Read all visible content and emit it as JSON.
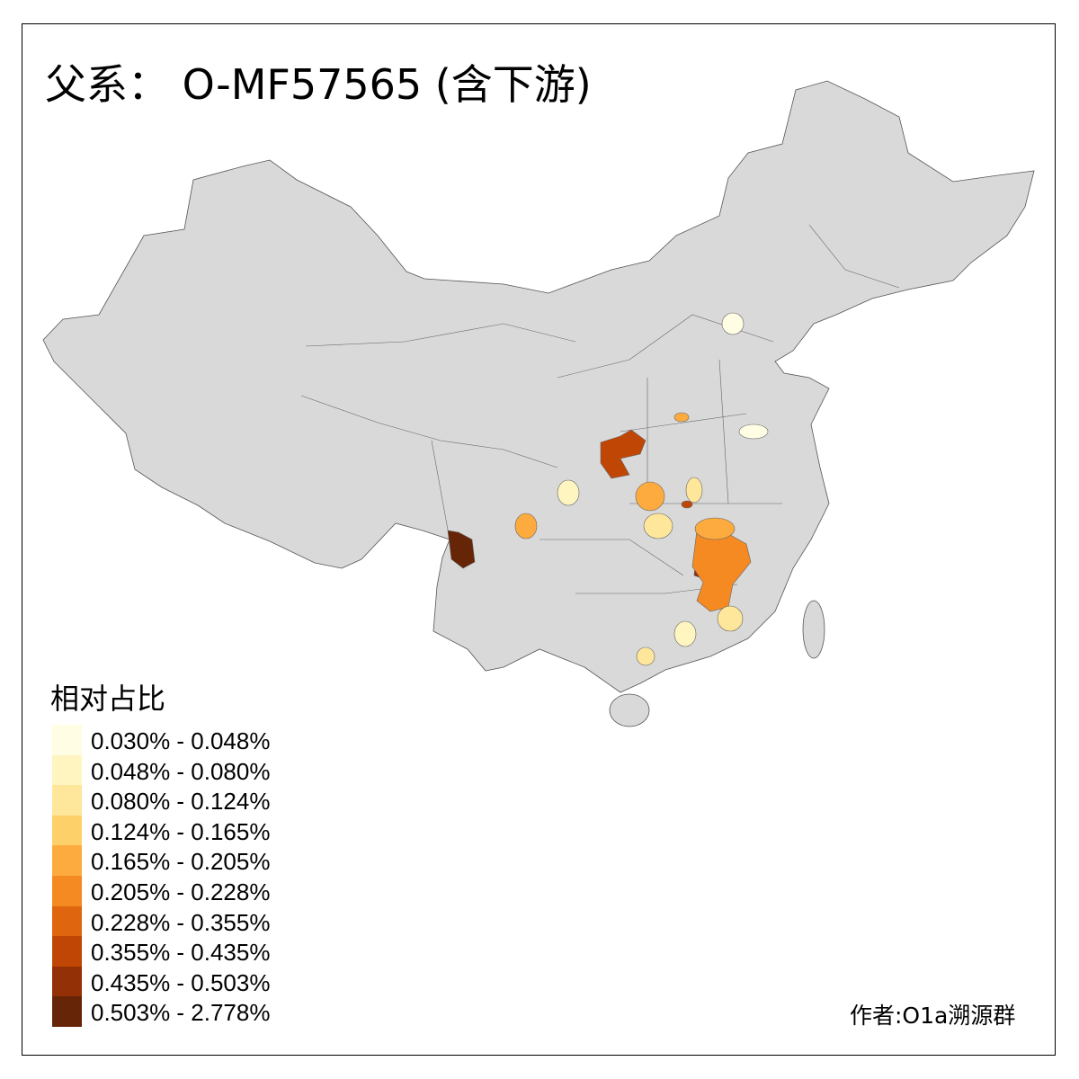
{
  "title": "父系： O-MF57565 (含下游)",
  "legend": {
    "title": "相对占比",
    "items": [
      {
        "label": "0.030% - 0.048%",
        "color": "#FFFDE3"
      },
      {
        "label": "0.048% - 0.080%",
        "color": "#FFF5C1"
      },
      {
        "label": "0.080% - 0.124%",
        "color": "#FEE69B"
      },
      {
        "label": "0.124% - 0.165%",
        "color": "#FED06A"
      },
      {
        "label": "0.165% - 0.205%",
        "color": "#FDAB3E"
      },
      {
        "label": "0.205% - 0.228%",
        "color": "#F58A22"
      },
      {
        "label": "0.228% - 0.355%",
        "color": "#E0650F"
      },
      {
        "label": "0.355% - 0.435%",
        "color": "#C04605"
      },
      {
        "label": "0.435% - 0.503%",
        "color": "#933006"
      },
      {
        "label": "0.503% - 2.778%",
        "color": "#662506"
      }
    ]
  },
  "base_color": "#D9D9D9",
  "credit": "作者:O1a溯源群"
}
